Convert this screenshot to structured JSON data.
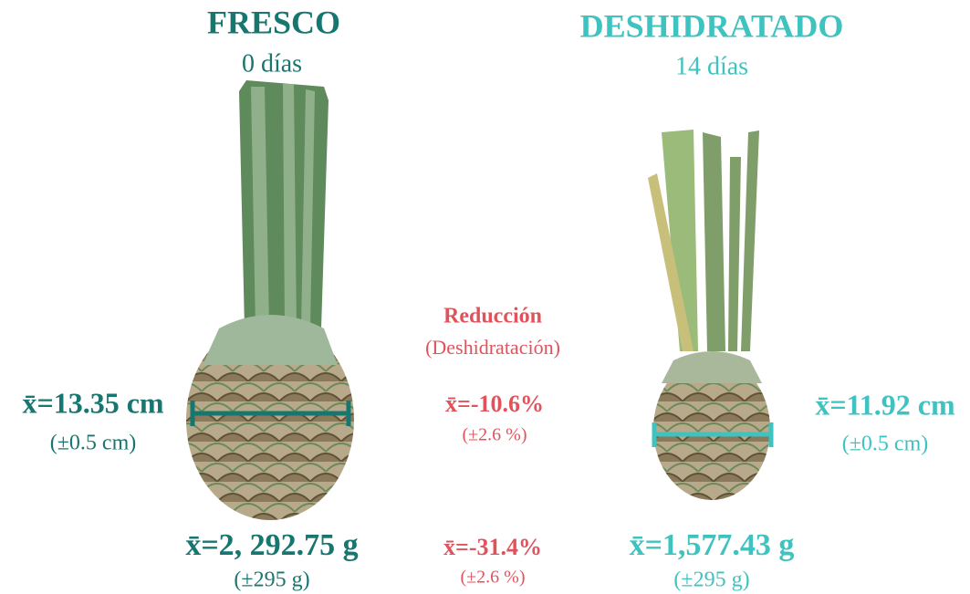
{
  "fresh": {
    "title": "FRESCO",
    "subtitle": "0 días",
    "diameter": "x̄=13.35 cm",
    "diameter_sd": "(±0.5 cm)",
    "weight": "x̄=2, 292.75 g",
    "weight_sd": "(±295 g)"
  },
  "dehydrated": {
    "title": "DESHIDRATADO",
    "subtitle": "14 días",
    "diameter": "x̄=11.92 cm",
    "diameter_sd": "(±0.5 cm)",
    "weight": "x̄=1,577.43 g",
    "weight_sd": "(±295 g)"
  },
  "reduction": {
    "title": "Reducción",
    "subtitle": "(Deshidratación)",
    "diameter": "x̄=-10.6%",
    "diameter_sd": "(±2.6 %)",
    "weight": "x̄=-31.4%",
    "weight_sd": "(±2.6 %)"
  }
}
